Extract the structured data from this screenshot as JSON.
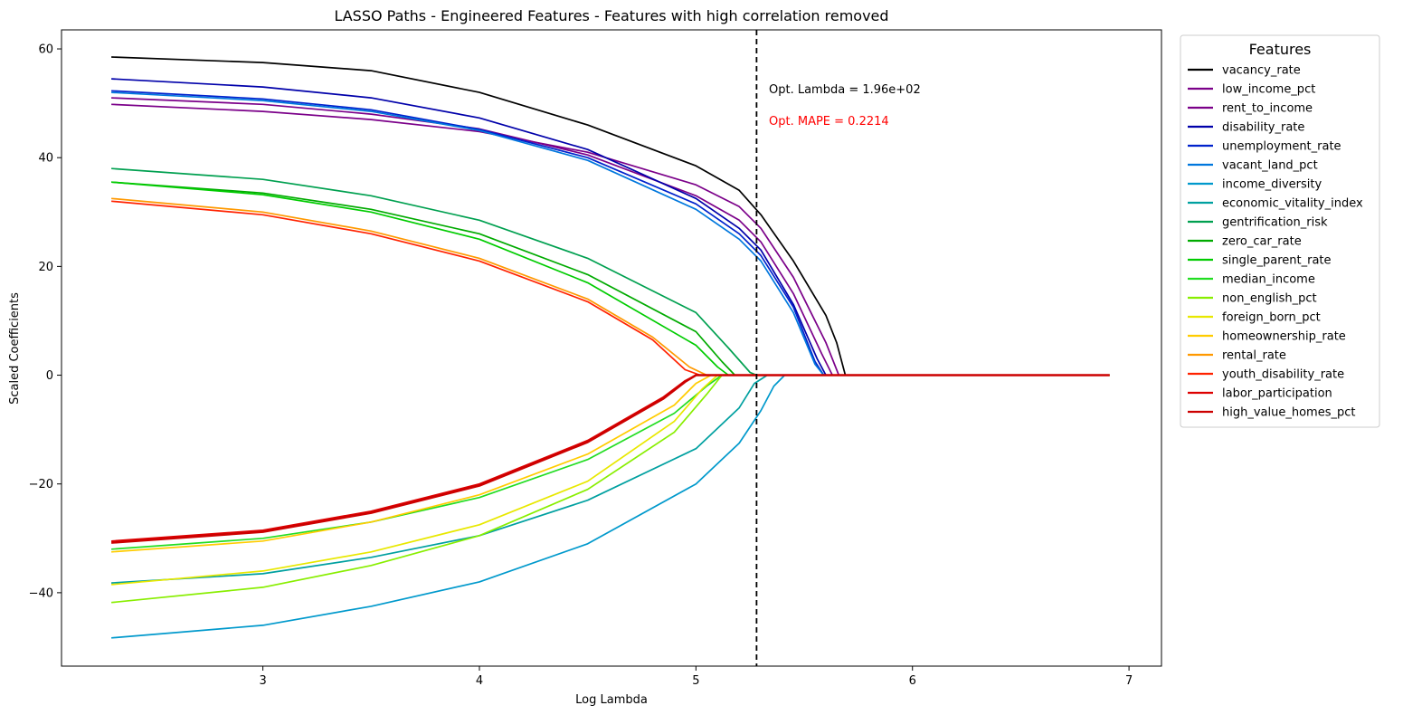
{
  "chart_data": {
    "type": "line",
    "title": "LASSO Paths - Engineered Features - Features with high correlation removed",
    "xlabel": "Log Lambda",
    "ylabel": "Scaled Coefficients",
    "xlim": [
      2.07,
      7.15
    ],
    "ylim": [
      -53.5,
      63.5
    ],
    "xticks": [
      3,
      4,
      5,
      6,
      7
    ],
    "yticks": [
      -40,
      -20,
      0,
      20,
      40,
      60
    ],
    "ytick_labels": [
      "−40",
      "−20",
      "0",
      "20",
      "40",
      "60"
    ],
    "grid": false,
    "legend": {
      "title": "Features",
      "position": "outside-right"
    },
    "opt_lambda_log": 5.28,
    "annotations": [
      {
        "text": "Opt. Lambda = 1.96e+02",
        "color": "#000000"
      },
      {
        "text": "Opt. MAPE = 0.2214",
        "color": "#ff0000"
      }
    ],
    "x_end": 6.91,
    "series": [
      {
        "name": "vacancy_rate",
        "color": "#000000",
        "width": 1.7,
        "knots": [
          [
            2.3,
            58.5
          ],
          [
            3.0,
            57.5
          ],
          [
            3.5,
            56.0
          ],
          [
            4.0,
            52.0
          ],
          [
            4.5,
            46.0
          ],
          [
            5.0,
            38.5
          ],
          [
            5.2,
            34.0
          ],
          [
            5.3,
            29.5
          ],
          [
            5.45,
            21.0
          ],
          [
            5.6,
            11.0
          ],
          [
            5.65,
            6.0
          ],
          [
            5.69,
            0
          ]
        ]
      },
      {
        "name": "low_income_pct",
        "color": "#7b0089",
        "width": 1.7,
        "knots": [
          [
            2.3,
            49.8
          ],
          [
            3.0,
            48.5
          ],
          [
            3.5,
            47.0
          ],
          [
            4.0,
            44.8
          ],
          [
            4.5,
            41.0
          ],
          [
            5.0,
            35.0
          ],
          [
            5.2,
            31.0
          ],
          [
            5.3,
            27.0
          ],
          [
            5.45,
            18.0
          ],
          [
            5.6,
            6.0
          ],
          [
            5.66,
            0
          ]
        ]
      },
      {
        "name": "rent_to_income",
        "color": "#7b0089",
        "width": 1.7,
        "knots": [
          [
            2.3,
            51.0
          ],
          [
            3.0,
            49.8
          ],
          [
            3.5,
            48.0
          ],
          [
            4.0,
            45.3
          ],
          [
            4.5,
            40.5
          ],
          [
            5.0,
            33.0
          ],
          [
            5.2,
            28.5
          ],
          [
            5.3,
            24.5
          ],
          [
            5.45,
            15.0
          ],
          [
            5.58,
            4.0
          ],
          [
            5.63,
            0
          ]
        ]
      },
      {
        "name": "disability_rate",
        "color": "#0000aa",
        "width": 1.7,
        "knots": [
          [
            2.3,
            54.5
          ],
          [
            3.0,
            53.0
          ],
          [
            3.5,
            51.0
          ],
          [
            4.0,
            47.3
          ],
          [
            4.5,
            41.5
          ],
          [
            5.0,
            32.5
          ],
          [
            5.2,
            27.0
          ],
          [
            5.3,
            23.0
          ],
          [
            5.45,
            13.0
          ],
          [
            5.56,
            3.0
          ],
          [
            5.6,
            0
          ]
        ]
      },
      {
        "name": "unemployment_rate",
        "color": "#0022cc",
        "width": 1.7,
        "knots": [
          [
            2.3,
            52.3
          ],
          [
            3.0,
            50.8
          ],
          [
            3.5,
            48.8
          ],
          [
            4.0,
            45.2
          ],
          [
            4.5,
            40.0
          ],
          [
            5.0,
            31.5
          ],
          [
            5.2,
            26.0
          ],
          [
            5.3,
            22.0
          ],
          [
            5.45,
            12.5
          ],
          [
            5.55,
            2.5
          ],
          [
            5.59,
            0
          ]
        ]
      },
      {
        "name": "vacant_land_pct",
        "color": "#0077dd",
        "width": 1.7,
        "knots": [
          [
            2.3,
            52.0
          ],
          [
            3.0,
            50.5
          ],
          [
            3.5,
            48.5
          ],
          [
            4.0,
            45.0
          ],
          [
            4.5,
            39.5
          ],
          [
            5.0,
            30.5
          ],
          [
            5.2,
            25.0
          ],
          [
            5.3,
            21.0
          ],
          [
            5.45,
            11.5
          ],
          [
            5.55,
            2.0
          ],
          [
            5.59,
            0
          ]
        ]
      },
      {
        "name": "income_diversity",
        "color": "#0099cc",
        "width": 1.7,
        "knots": [
          [
            2.3,
            -48.3
          ],
          [
            3.0,
            -46.0
          ],
          [
            3.5,
            -42.5
          ],
          [
            4.0,
            -38.0
          ],
          [
            4.5,
            -31.0
          ],
          [
            5.0,
            -20.0
          ],
          [
            5.2,
            -12.5
          ],
          [
            5.3,
            -6.5
          ],
          [
            5.36,
            -2.0
          ],
          [
            5.41,
            0
          ]
        ]
      },
      {
        "name": "economic_vitality_index",
        "color": "#00a0a0",
        "width": 1.7,
        "knots": [
          [
            2.3,
            -38.2
          ],
          [
            3.0,
            -36.5
          ],
          [
            3.5,
            -33.5
          ],
          [
            4.0,
            -29.5
          ],
          [
            4.5,
            -23.0
          ],
          [
            5.0,
            -13.5
          ],
          [
            5.2,
            -6.0
          ],
          [
            5.27,
            -1.5
          ],
          [
            5.33,
            0
          ]
        ]
      },
      {
        "name": "gentrification_risk",
        "color": "#00a050",
        "width": 1.7,
        "knots": [
          [
            2.3,
            38.0
          ],
          [
            3.0,
            36.0
          ],
          [
            3.5,
            33.0
          ],
          [
            4.0,
            28.5
          ],
          [
            4.5,
            21.5
          ],
          [
            5.0,
            11.5
          ],
          [
            5.15,
            5.0
          ],
          [
            5.25,
            0.5
          ],
          [
            5.28,
            0
          ]
        ]
      },
      {
        "name": "zero_car_rate",
        "color": "#00aa00",
        "width": 1.7,
        "knots": [
          [
            2.3,
            35.5
          ],
          [
            3.0,
            33.5
          ],
          [
            3.5,
            30.5
          ],
          [
            4.0,
            26.0
          ],
          [
            4.5,
            18.5
          ],
          [
            5.0,
            8.0
          ],
          [
            5.12,
            2.5
          ],
          [
            5.18,
            0
          ]
        ]
      },
      {
        "name": "single_parent_rate",
        "color": "#00cc00",
        "width": 1.7,
        "knots": [
          [
            2.3,
            35.5
          ],
          [
            3.0,
            33.2
          ],
          [
            3.5,
            30.0
          ],
          [
            4.0,
            25.0
          ],
          [
            4.5,
            17.0
          ],
          [
            5.0,
            5.5
          ],
          [
            5.1,
            1.5
          ],
          [
            5.15,
            0
          ]
        ]
      },
      {
        "name": "median_income",
        "color": "#22dd22",
        "width": 1.7,
        "knots": [
          [
            2.3,
            -32.0
          ],
          [
            3.0,
            -30.0
          ],
          [
            3.5,
            -27.0
          ],
          [
            4.0,
            -22.5
          ],
          [
            4.5,
            -15.5
          ],
          [
            4.9,
            -7.0
          ],
          [
            5.05,
            -2.0
          ],
          [
            5.12,
            0
          ]
        ]
      },
      {
        "name": "non_english_pct",
        "color": "#88ee00",
        "width": 1.7,
        "knots": [
          [
            2.3,
            -41.8
          ],
          [
            3.0,
            -39.0
          ],
          [
            3.5,
            -35.0
          ],
          [
            4.0,
            -29.5
          ],
          [
            4.5,
            -21.0
          ],
          [
            4.9,
            -10.5
          ],
          [
            5.05,
            -3.5
          ],
          [
            5.12,
            0
          ]
        ]
      },
      {
        "name": "foreign_born_pct",
        "color": "#e8e800",
        "width": 1.7,
        "knots": [
          [
            2.3,
            -38.5
          ],
          [
            3.0,
            -36.0
          ],
          [
            3.5,
            -32.5
          ],
          [
            4.0,
            -27.5
          ],
          [
            4.5,
            -19.5
          ],
          [
            4.9,
            -8.5
          ],
          [
            5.03,
            -2.5
          ],
          [
            5.1,
            0
          ]
        ]
      },
      {
        "name": "homeownership_rate",
        "color": "#ffcc00",
        "width": 1.7,
        "knots": [
          [
            2.3,
            -32.5
          ],
          [
            3.0,
            -30.5
          ],
          [
            3.5,
            -27.0
          ],
          [
            4.0,
            -22.0
          ],
          [
            4.5,
            -14.5
          ],
          [
            4.9,
            -5.5
          ],
          [
            5.0,
            -1.5
          ],
          [
            5.07,
            0
          ]
        ]
      },
      {
        "name": "rental_rate",
        "color": "#ff9900",
        "width": 1.7,
        "knots": [
          [
            2.3,
            32.5
          ],
          [
            3.0,
            30.0
          ],
          [
            3.5,
            26.5
          ],
          [
            4.0,
            21.5
          ],
          [
            4.5,
            14.0
          ],
          [
            4.8,
            7.0
          ],
          [
            4.97,
            1.5
          ],
          [
            5.05,
            0
          ]
        ]
      },
      {
        "name": "youth_disability_rate",
        "color": "#ff2200",
        "width": 1.7,
        "knots": [
          [
            2.3,
            32.0
          ],
          [
            3.0,
            29.5
          ],
          [
            3.5,
            26.0
          ],
          [
            4.0,
            21.0
          ],
          [
            4.5,
            13.5
          ],
          [
            4.8,
            6.5
          ],
          [
            4.95,
            1.0
          ],
          [
            5.02,
            0
          ]
        ]
      },
      {
        "name": "labor_participation",
        "color": "#dd0000",
        "width": 1.7,
        "knots": [
          [
            2.3,
            -30.5
          ],
          [
            3.0,
            -28.5
          ],
          [
            3.5,
            -25.0
          ],
          [
            4.0,
            -20.0
          ],
          [
            4.5,
            -12.0
          ],
          [
            4.85,
            -4.0
          ],
          [
            4.95,
            -1.0
          ],
          [
            5.0,
            0
          ]
        ]
      },
      {
        "name": "high_value_homes_pct",
        "color": "#cc0000",
        "width": 2.6,
        "knots": [
          [
            2.3,
            -30.8
          ],
          [
            3.0,
            -28.8
          ],
          [
            3.5,
            -25.3
          ],
          [
            4.0,
            -20.3
          ],
          [
            4.5,
            -12.3
          ],
          [
            4.85,
            -4.3
          ],
          [
            4.95,
            -1.2
          ],
          [
            5.0,
            0
          ]
        ]
      }
    ]
  }
}
